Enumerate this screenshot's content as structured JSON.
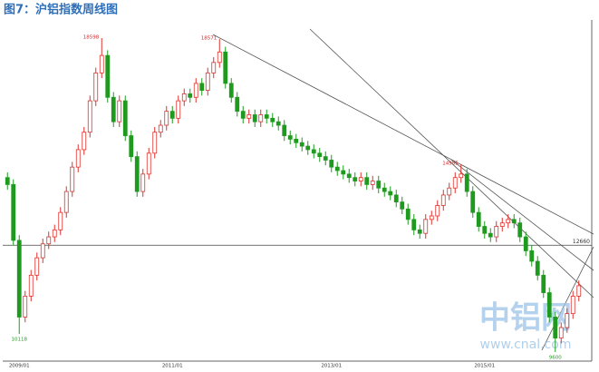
{
  "chart_data": {
    "type": "candlestick",
    "title": "图7：沪铝指数周线图",
    "categories": [
      null,
      null,
      "2009/01",
      null,
      null,
      null,
      null,
      null,
      null,
      null,
      null,
      null,
      null,
      null,
      null,
      null,
      null,
      null,
      null,
      null,
      null,
      null,
      null,
      null,
      null,
      null,
      null,
      null,
      "2011/01",
      null,
      null,
      null,
      null,
      null,
      null,
      null,
      null,
      null,
      null,
      null,
      null,
      null,
      null,
      null,
      null,
      null,
      null,
      null,
      null,
      null,
      null,
      null,
      null,
      null,
      null,
      "2013/01",
      null,
      null,
      null,
      null,
      null,
      null,
      null,
      null,
      null,
      null,
      null,
      null,
      null,
      null,
      null,
      null,
      null,
      null,
      null,
      null,
      null,
      null,
      null,
      null,
      null,
      "2015/01",
      null,
      null,
      null,
      null,
      null,
      null,
      null,
      null,
      null,
      null,
      null,
      null,
      null,
      null,
      null,
      null
    ],
    "open": [
      14600,
      14400,
      12800,
      10600,
      11200,
      11800,
      12300,
      12700,
      12900,
      13100,
      13600,
      14200,
      14900,
      15400,
      15900,
      16800,
      17600,
      18100,
      16900,
      16200,
      16800,
      15800,
      15200,
      14200,
      14700,
      15300,
      15900,
      16100,
      16500,
      16300,
      16800,
      17000,
      16900,
      17300,
      17100,
      17600,
      17900,
      18200,
      17300,
      16900,
      16500,
      16300,
      16400,
      16200,
      16400,
      16300,
      16200,
      16100,
      15800,
      15700,
      15600,
      15500,
      15400,
      15300,
      15200,
      15100,
      14900,
      14800,
      14700,
      14600,
      14500,
      14600,
      14400,
      14500,
      14300,
      14200,
      14100,
      13900,
      13700,
      13400,
      13100,
      13000,
      13400,
      13500,
      13800,
      14100,
      14300,
      14600,
      14700,
      14200,
      13600,
      13200,
      13000,
      12900,
      13200,
      13300,
      13400,
      13300,
      12900,
      12500,
      12200,
      11800,
      11300,
      10600,
      10000,
      10300,
      10700,
      11200
    ],
    "high": [
      14750,
      14550,
      12950,
      11350,
      11950,
      12450,
      12850,
      13050,
      13250,
      13750,
      14350,
      15050,
      15550,
      16050,
      16950,
      17750,
      18598,
      18250,
      17050,
      16950,
      16950,
      15950,
      15350,
      14850,
      15450,
      16050,
      16250,
      16650,
      16650,
      16950,
      17150,
      17150,
      17450,
      17450,
      17750,
      18050,
      18571,
      18350,
      17450,
      17050,
      16650,
      16550,
      16550,
      16550,
      16550,
      16450,
      16350,
      16250,
      15950,
      15850,
      15750,
      15650,
      15550,
      15450,
      15350,
      15250,
      15050,
      14950,
      14850,
      14750,
      14750,
      14750,
      14650,
      14650,
      14450,
      14350,
      14250,
      14050,
      13850,
      13550,
      13250,
      13550,
      13650,
      13950,
      14250,
      14450,
      14750,
      14985,
      14850,
      14350,
      13750,
      13350,
      13150,
      13350,
      13450,
      13550,
      13550,
      13450,
      13050,
      12650,
      12350,
      11950,
      11450,
      10750,
      10450,
      10850,
      11350,
      11650
    ],
    "low": [
      14250,
      12650,
      10118,
      10450,
      11050,
      11650,
      12150,
      12550,
      12750,
      12950,
      13450,
      14050,
      14750,
      15250,
      15750,
      16650,
      17450,
      16750,
      16050,
      16050,
      15650,
      15050,
      14050,
      14050,
      14550,
      15150,
      15750,
      15950,
      16150,
      16150,
      16650,
      16750,
      16750,
      16950,
      16950,
      17450,
      17750,
      17150,
      16750,
      16350,
      16150,
      16150,
      16050,
      16050,
      16150,
      16050,
      15950,
      15650,
      15550,
      15450,
      15350,
      15250,
      15150,
      15050,
      14950,
      14750,
      14650,
      14550,
      14450,
      14350,
      14350,
      14250,
      14250,
      14150,
      14050,
      13950,
      13750,
      13550,
      13250,
      12950,
      12850,
      12850,
      13250,
      13350,
      13650,
      13950,
      14150,
      14450,
      14050,
      13450,
      13050,
      12850,
      12750,
      12750,
      13050,
      13150,
      13150,
      12750,
      12350,
      12050,
      11650,
      11150,
      10450,
      9600,
      9850,
      10150,
      10550,
      11050
    ],
    "close": [
      14400,
      12800,
      10600,
      11200,
      11800,
      12300,
      12700,
      12900,
      13100,
      13600,
      14200,
      14900,
      15400,
      15900,
      16800,
      17600,
      18100,
      16900,
      16200,
      16800,
      15800,
      15200,
      14200,
      14700,
      15300,
      15900,
      16100,
      16500,
      16300,
      16800,
      17000,
      16900,
      17300,
      17100,
      17600,
      17900,
      18200,
      17300,
      16900,
      16500,
      16300,
      16400,
      16200,
      16400,
      16300,
      16200,
      16100,
      15800,
      15700,
      15600,
      15500,
      15400,
      15300,
      15200,
      15100,
      14900,
      14800,
      14700,
      14600,
      14500,
      14600,
      14400,
      14500,
      14300,
      14200,
      14100,
      13900,
      13700,
      13400,
      13100,
      13000,
      13400,
      13500,
      13800,
      14100,
      14300,
      14600,
      14700,
      14200,
      13600,
      13200,
      13000,
      12900,
      13200,
      13300,
      13400,
      13300,
      12900,
      12500,
      12200,
      11800,
      11300,
      10600,
      10000,
      10300,
      10700,
      11200,
      11500
    ],
    "up_color": "#e0302a",
    "down_color": "#1f9a1f",
    "ylim": [
      9338,
      19118
    ],
    "hline": 12660,
    "annotations": [
      "18598",
      "18571",
      "14985",
      "10118",
      "9600"
    ],
    "watermark": {
      "main": "中铝网",
      "url": "www.cnal.com"
    }
  }
}
